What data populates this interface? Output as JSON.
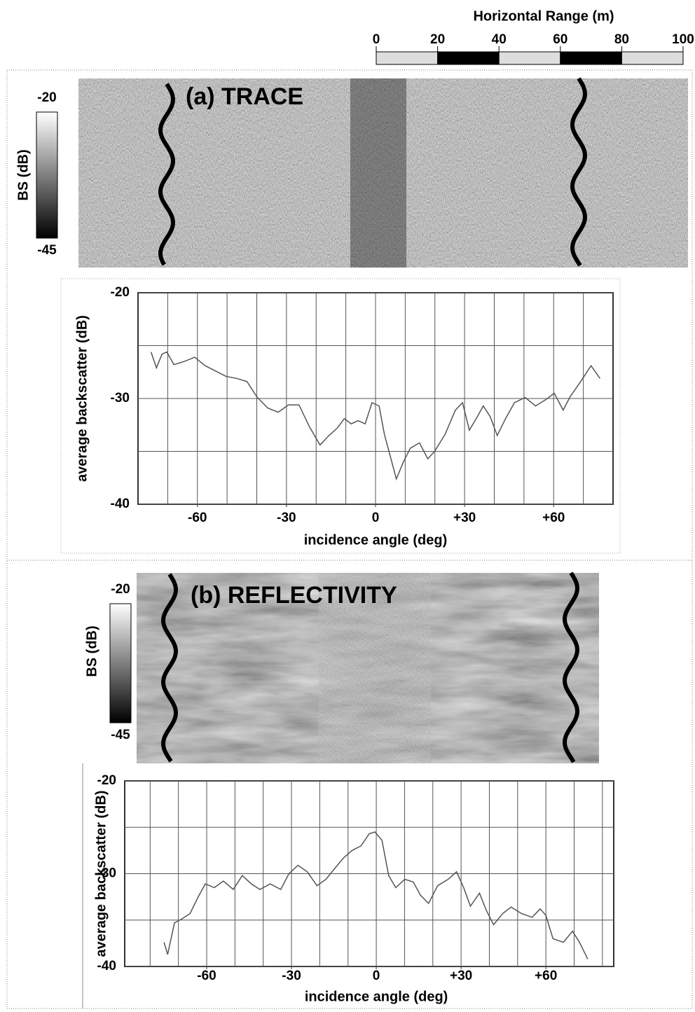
{
  "scale_bar": {
    "title": "Horizontal Range (m)",
    "xlim": [
      0,
      100
    ],
    "ticks": [
      0,
      20,
      40,
      60,
      80,
      100
    ]
  },
  "panels": [
    {
      "image_label": "(a) TRACE",
      "colorbar_label": "BS (dB)",
      "colorbar_ticks": [
        -20,
        -45
      ]
    },
    {
      "image_label": "(b) REFLECTIVITY",
      "colorbar_label": "BS (dB)",
      "colorbar_ticks": [
        -20,
        -45
      ]
    }
  ],
  "chart_data": [
    {
      "type": "line",
      "x_label": "incidence angle (deg)",
      "y_label": "average backscatter (dB)",
      "xlim": [
        -80,
        80
      ],
      "ylim": [
        -40,
        -20
      ],
      "xticks": [
        -60,
        -30,
        0,
        {
          "value": 30,
          "label": "+30"
        },
        {
          "value": 60,
          "label": "+60"
        }
      ],
      "xgrid": [
        -70,
        -60,
        -50,
        -40,
        -30,
        -20,
        -10,
        0,
        10,
        20,
        30,
        40,
        50,
        60,
        70
      ],
      "yticks": [
        -20,
        -30,
        -40
      ],
      "ygrid": [
        -25,
        -35
      ],
      "color": "#555555",
      "x": [
        -75.6,
        -73.8,
        -71.9,
        -70.3,
        -67.9,
        -64.4,
        -60.9,
        -57.4,
        -53.9,
        -50.4,
        -46.8,
        -43.3,
        -39.8,
        -36.3,
        -32.8,
        -29.3,
        -25.8,
        -22.2,
        -18.7,
        -15.7,
        -12.9,
        -10.5,
        -8.2,
        -5.9,
        -3.5,
        -1.2,
        1.2,
        3.0,
        4.9,
        7.0,
        9.4,
        11.7,
        14.8,
        17.6,
        19.9,
        23.4,
        26.9,
        29.3,
        31.6,
        33.9,
        36.3,
        38.6,
        41.0,
        43.8,
        46.8,
        50.4,
        53.9,
        57.4,
        60.2,
        63.2,
        65.6,
        69.1,
        72.6,
        75.6
      ],
      "values": [
        -25.6,
        -27.1,
        -25.8,
        -25.6,
        -26.8,
        -26.5,
        -26.1,
        -26.9,
        -27.4,
        -27.9,
        -28.1,
        -28.4,
        -29.9,
        -30.9,
        -31.3,
        -30.6,
        -30.6,
        -32.7,
        -34.4,
        -33.5,
        -32.8,
        -31.9,
        -32.4,
        -32.1,
        -32.4,
        -30.4,
        -30.7,
        -33.4,
        -35.4,
        -37.6,
        -36.0,
        -34.7,
        -34.2,
        -35.7,
        -35.0,
        -33.4,
        -31.1,
        -30.4,
        -33.0,
        -31.9,
        -30.7,
        -31.7,
        -33.5,
        -31.9,
        -30.4,
        -29.9,
        -30.7,
        -30.1,
        -29.5,
        -31.1,
        -29.8,
        -28.4,
        -26.9,
        -28.1
      ]
    },
    {
      "type": "line",
      "x_label": "incidence angle (deg)",
      "y_label": "average backscatter (dB)",
      "xlim": [
        -89,
        84
      ],
      "ylim": [
        -40,
        -20
      ],
      "xticks": [
        -60,
        -30,
        0,
        {
          "value": 30,
          "label": "+30"
        },
        {
          "value": 60,
          "label": "+60"
        }
      ],
      "xgrid": [
        -80,
        -70,
        -60,
        -50,
        -40,
        -30,
        -20,
        -10,
        0,
        10,
        20,
        30,
        40,
        50,
        60,
        70,
        80
      ],
      "yticks": [
        -20,
        -30,
        -40
      ],
      "ygrid": [
        -25,
        -35
      ],
      "color": "#555555",
      "x": [
        -75.1,
        -73.8,
        -71.4,
        -68.9,
        -65.9,
        -63.0,
        -60.5,
        -57.3,
        -54.1,
        -50.6,
        -47.4,
        -44.2,
        -41.2,
        -37.5,
        -33.8,
        -30.9,
        -27.7,
        -24.4,
        -21.0,
        -17.8,
        -14.6,
        -11.6,
        -8.6,
        -5.4,
        -2.5,
        -0.5,
        2.0,
        4.4,
        6.9,
        10.1,
        13.1,
        15.6,
        18.5,
        21.7,
        25.4,
        28.4,
        30.9,
        33.3,
        36.5,
        39.0,
        41.5,
        44.7,
        47.7,
        51.4,
        55.1,
        58.0,
        60.0,
        62.5,
        66.2,
        69.4,
        71.9,
        74.8
      ],
      "values": [
        -37.4,
        -38.7,
        -35.3,
        -34.9,
        -34.3,
        -32.5,
        -31.1,
        -31.5,
        -30.8,
        -31.7,
        -30.2,
        -31.1,
        -31.7,
        -31.1,
        -31.7,
        -30.0,
        -29.1,
        -29.8,
        -31.3,
        -30.6,
        -29.4,
        -28.3,
        -27.5,
        -27.0,
        -25.7,
        -25.5,
        -26.4,
        -30.2,
        -31.5,
        -30.6,
        -30.9,
        -32.3,
        -33.2,
        -31.3,
        -30.6,
        -29.8,
        -31.5,
        -33.5,
        -32.1,
        -34.0,
        -35.5,
        -34.3,
        -33.6,
        -34.3,
        -34.7,
        -33.8,
        -34.5,
        -37.0,
        -37.4,
        -36.2,
        -37.4,
        -39.2
      ]
    }
  ]
}
